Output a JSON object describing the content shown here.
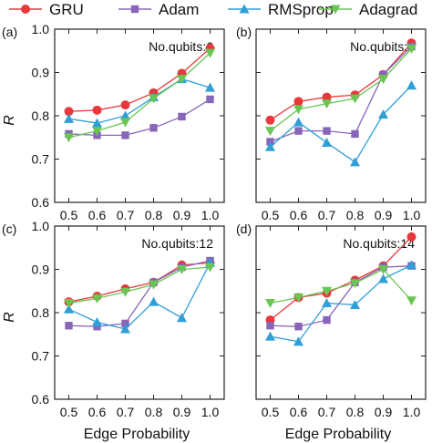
{
  "legend": {
    "items": [
      {
        "name": "GRU",
        "color": "#e8383b",
        "marker": "circle"
      },
      {
        "name": "Adam",
        "color": "#8766b8",
        "marker": "square"
      },
      {
        "name": "RMSprop",
        "color": "#2f9fd6",
        "marker": "triangle-up"
      },
      {
        "name": "Adagrad",
        "color": "#69c653",
        "marker": "triangle-down"
      }
    ]
  },
  "shared_axes": {
    "ylabel": "R",
    "xlabel": "Edge Probability",
    "x_ticks": [
      "0.5",
      "0.6",
      "0.7",
      "0.8",
      "0.9",
      "1.0"
    ],
    "y_ticks": [
      "0.6",
      "0.7",
      "0.8",
      "0.9",
      "1.0"
    ]
  },
  "chart_data": [
    {
      "type": "line",
      "panel_label": "(a)",
      "annotation": "No.qubits:6",
      "x": [
        0.5,
        0.6,
        0.7,
        0.8,
        0.9,
        1.0
      ],
      "ylim": [
        0.6,
        1.0
      ],
      "series": [
        {
          "name": "GRU",
          "values": [
            0.81,
            0.813,
            0.825,
            0.853,
            0.898,
            0.956
          ]
        },
        {
          "name": "Adam",
          "values": [
            0.758,
            0.755,
            0.755,
            0.772,
            0.798,
            0.838
          ]
        },
        {
          "name": "RMSprop",
          "values": [
            0.793,
            0.783,
            0.8,
            0.843,
            0.885,
            0.865
          ]
        },
        {
          "name": "Adagrad",
          "values": [
            0.75,
            0.765,
            0.785,
            0.84,
            0.885,
            0.945
          ]
        }
      ]
    },
    {
      "type": "line",
      "panel_label": "(b)",
      "annotation": "No.qubits:8",
      "x": [
        0.5,
        0.6,
        0.7,
        0.8,
        0.9,
        1.0
      ],
      "ylim": [
        0.6,
        1.0
      ],
      "series": [
        {
          "name": "GRU",
          "values": [
            0.79,
            0.833,
            0.843,
            0.848,
            0.895,
            0.968
          ]
        },
        {
          "name": "Adam",
          "values": [
            0.74,
            0.765,
            0.765,
            0.758,
            0.895,
            0.96
          ]
        },
        {
          "name": "RMSprop",
          "values": [
            0.728,
            0.785,
            0.738,
            0.693,
            0.803,
            0.87
          ]
        },
        {
          "name": "Adagrad",
          "values": [
            0.765,
            0.815,
            0.828,
            0.84,
            0.885,
            0.955
          ]
        }
      ]
    },
    {
      "type": "line",
      "panel_label": "(c)",
      "annotation": "No.qubits:12",
      "x": [
        0.5,
        0.6,
        0.7,
        0.8,
        0.9,
        1.0
      ],
      "ylim": [
        0.6,
        1.0
      ],
      "series": [
        {
          "name": "GRU",
          "values": [
            0.825,
            0.838,
            0.855,
            0.87,
            0.91,
            0.915
          ]
        },
        {
          "name": "Adam",
          "values": [
            0.77,
            0.768,
            0.775,
            0.87,
            0.905,
            0.92
          ]
        },
        {
          "name": "RMSprop",
          "values": [
            0.808,
            0.778,
            0.762,
            0.825,
            0.788,
            0.915
          ]
        },
        {
          "name": "Adagrad",
          "values": [
            0.822,
            0.833,
            0.848,
            0.865,
            0.9,
            0.905
          ]
        }
      ]
    },
    {
      "type": "line",
      "panel_label": "(d)",
      "annotation": "No.qubits:14",
      "x": [
        0.5,
        0.6,
        0.7,
        0.8,
        0.9,
        1.0
      ],
      "ylim": [
        0.6,
        1.0
      ],
      "series": [
        {
          "name": "GRU",
          "values": [
            0.783,
            0.835,
            0.845,
            0.875,
            0.908,
            0.975
          ]
        },
        {
          "name": "Adam",
          "values": [
            0.77,
            0.768,
            0.783,
            0.87,
            0.905,
            0.908
          ]
        },
        {
          "name": "RMSprop",
          "values": [
            0.745,
            0.733,
            0.822,
            0.818,
            0.878,
            0.91
          ]
        },
        {
          "name": "Adagrad",
          "values": [
            0.822,
            0.835,
            0.85,
            0.868,
            0.9,
            0.828
          ]
        }
      ]
    }
  ]
}
